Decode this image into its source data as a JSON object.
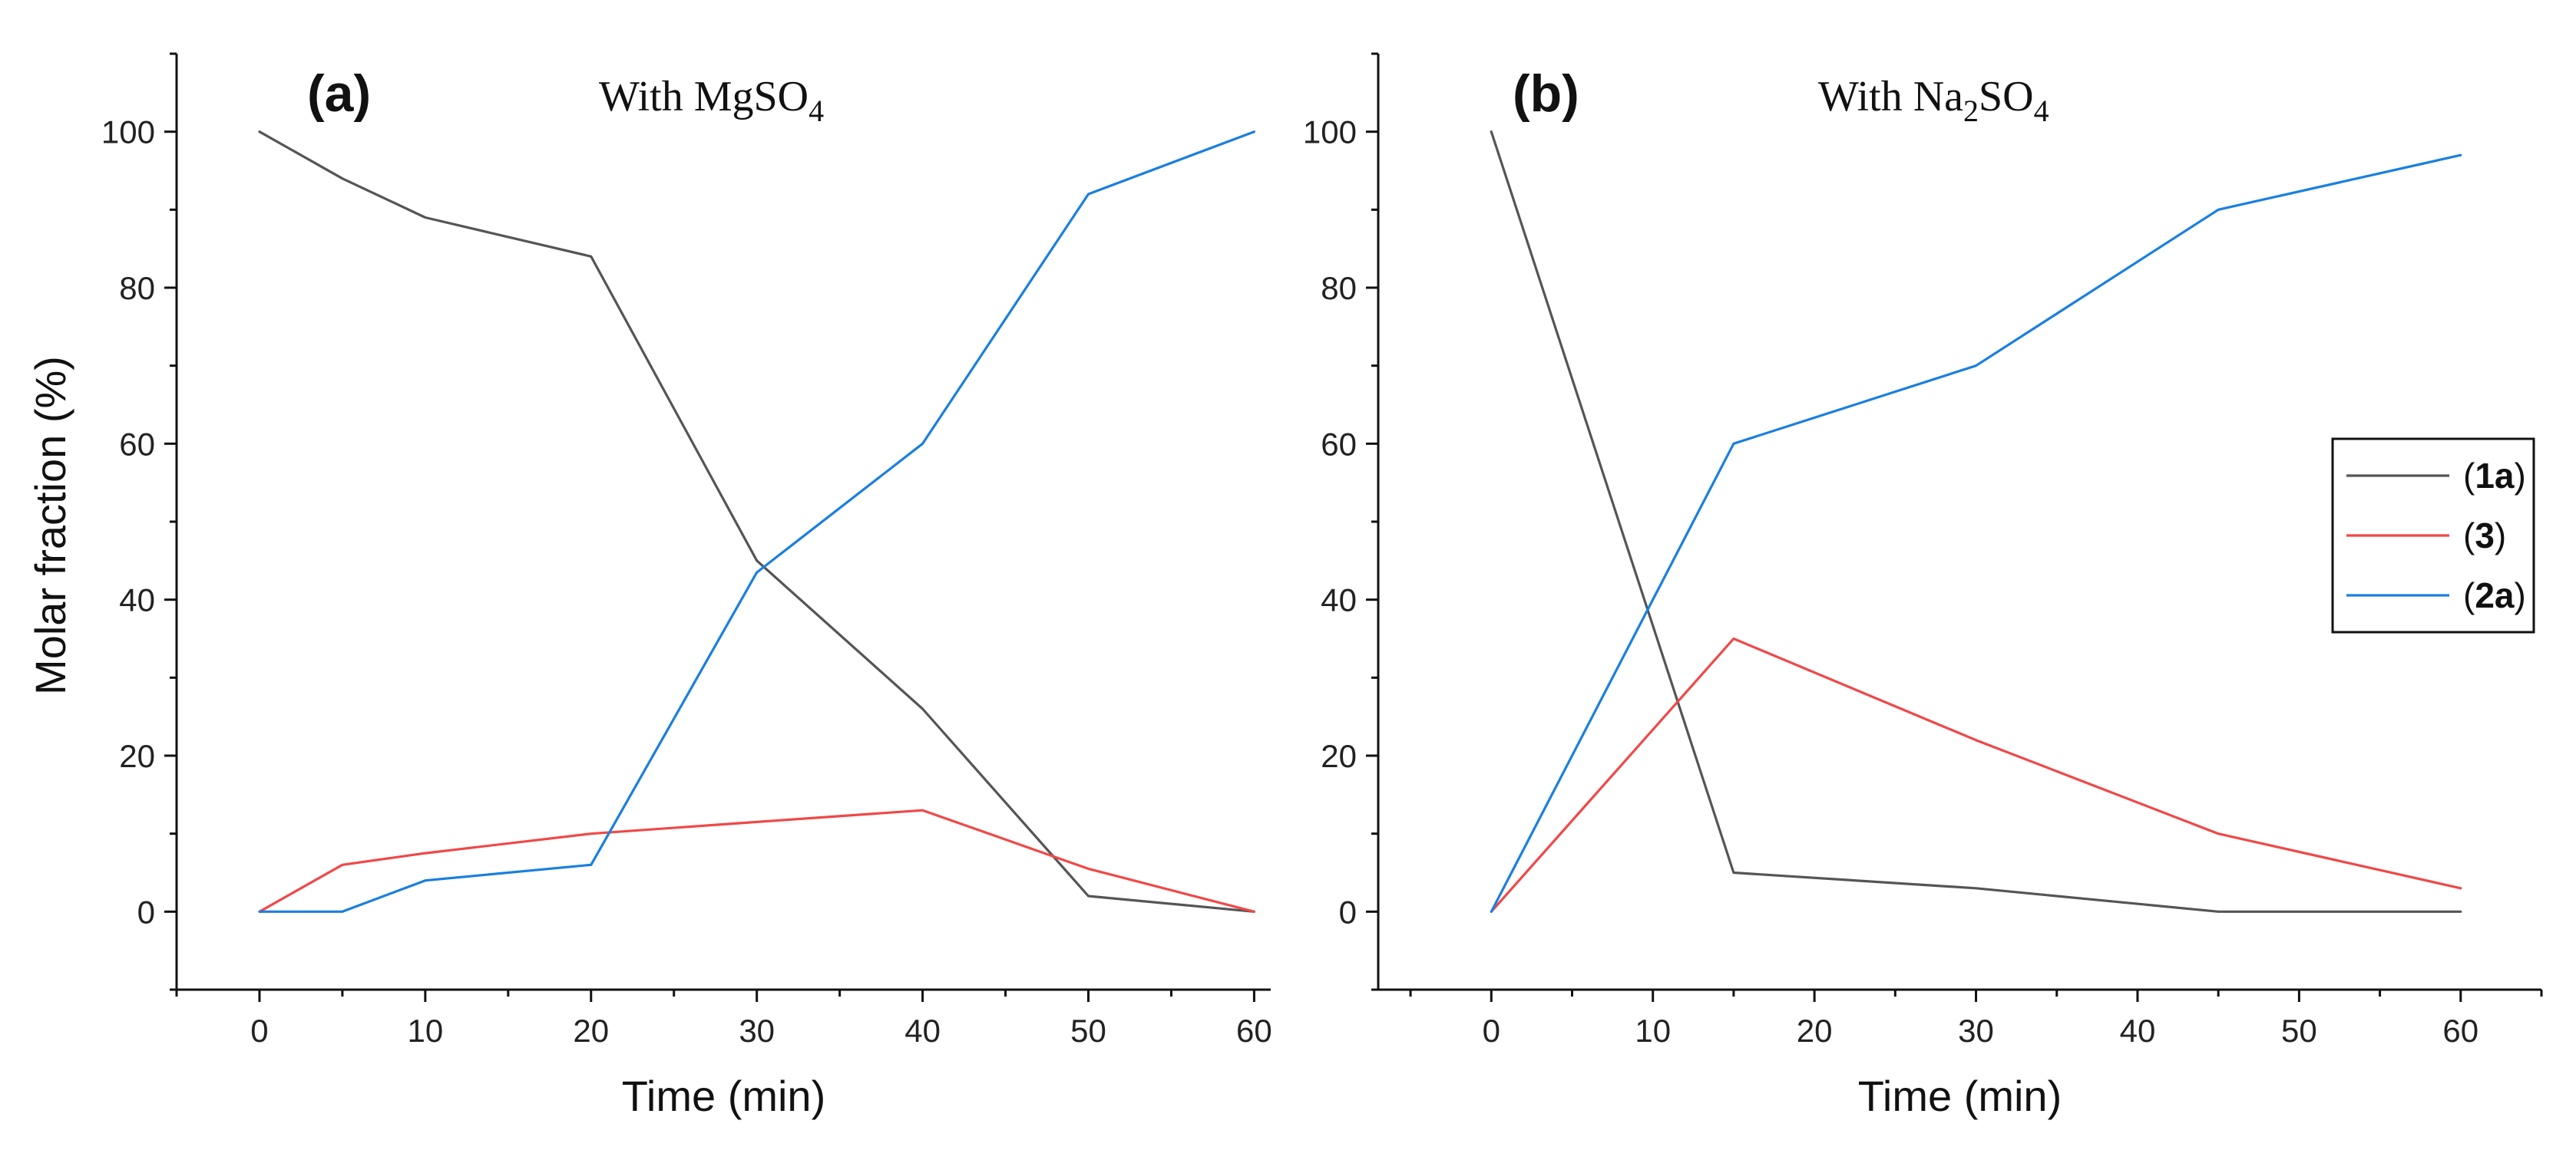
{
  "figure": {
    "ylabel": "Molar fraction (%)"
  },
  "chart_data": [
    {
      "type": "line",
      "panel_label": "(a)",
      "title_prefix": "With MgSO",
      "title_subscript": "4",
      "title": "With MgSO4",
      "xlabel": "Time (min)",
      "ylabel": "Molar fraction (%)",
      "xlim": [
        -5,
        61
      ],
      "ylim": [
        -10,
        110
      ],
      "xticks": [
        0,
        10,
        20,
        30,
        40,
        50,
        60
      ],
      "yticks": [
        0,
        20,
        40,
        60,
        80,
        100
      ],
      "series": [
        {
          "name": "1a",
          "color": "#555555",
          "x": [
            0,
            5,
            10,
            20,
            30,
            40,
            50,
            60
          ],
          "values": [
            100,
            94,
            89,
            84,
            45,
            26,
            2,
            0
          ]
        },
        {
          "name": "3",
          "color": "#f04848",
          "x": [
            0,
            5,
            10,
            20,
            30,
            40,
            50,
            60
          ],
          "values": [
            0,
            6,
            7.5,
            10,
            11.5,
            13,
            5.5,
            0
          ]
        },
        {
          "name": "2a",
          "color": "#1a7fe0",
          "x": [
            0,
            5,
            10,
            20,
            30,
            40,
            50,
            60
          ],
          "values": [
            0,
            0,
            4,
            6,
            43.5,
            60,
            92,
            100
          ]
        }
      ]
    },
    {
      "type": "line",
      "panel_label": "(b)",
      "title_prefix": "With Na",
      "title_subscript": "2",
      "title_suffix": "SO",
      "title_subscript2": "4",
      "title": "With Na2SO4",
      "xlabel": "Time (min)",
      "ylabel": "",
      "xlim": [
        -7,
        65
      ],
      "ylim": [
        -10,
        110
      ],
      "xticks": [
        0,
        10,
        20,
        30,
        40,
        50,
        60
      ],
      "yticks": [
        0,
        20,
        40,
        60,
        80,
        100
      ],
      "legend": {
        "position": "center-right",
        "entries": [
          {
            "series": "1a",
            "label": "1a"
          },
          {
            "series": "3",
            "label": "3"
          },
          {
            "series": "2a",
            "label": "2a"
          }
        ]
      },
      "series": [
        {
          "name": "1a",
          "color": "#555555",
          "x": [
            0,
            15,
            30,
            45,
            60
          ],
          "values": [
            100,
            5,
            3,
            0,
            0
          ]
        },
        {
          "name": "3",
          "color": "#f04848",
          "x": [
            0,
            15,
            30,
            45,
            60
          ],
          "values": [
            0,
            35,
            22,
            10,
            3
          ]
        },
        {
          "name": "2a",
          "color": "#1a7fe0",
          "x": [
            0,
            15,
            30,
            45,
            60
          ],
          "values": [
            0,
            60,
            70,
            90,
            97
          ]
        }
      ]
    }
  ]
}
